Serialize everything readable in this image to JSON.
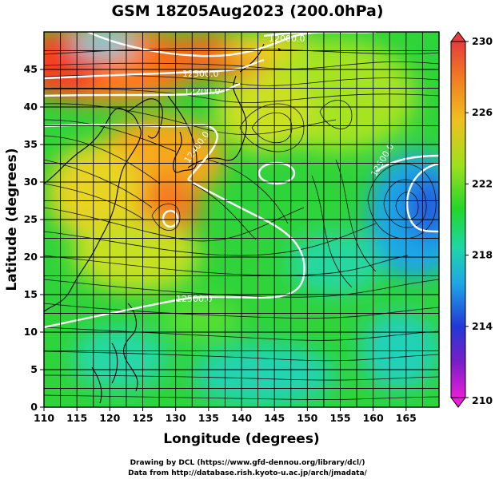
{
  "title": "GSM 18Z05Aug2023 (200.0hPa)",
  "axes": {
    "xlabel": "Longitude (degrees)",
    "ylabel": "Latitude  (degrees)",
    "xticks": [
      "110",
      "115",
      "120",
      "125",
      "130",
      "135",
      "140",
      "145",
      "150",
      "155",
      "160",
      "165"
    ],
    "yticks": [
      "0",
      "5",
      "10",
      "15",
      "20",
      "25",
      "30",
      "35",
      "40",
      "45"
    ],
    "xlim": [
      110,
      170
    ],
    "ylim": [
      0,
      50
    ]
  },
  "colorbar": {
    "ticks": [
      "230",
      "226",
      "222",
      "218",
      "214",
      "210"
    ],
    "range": [
      210,
      230
    ]
  },
  "contours": {
    "labels": [
      "12500.0",
      "12300.0",
      "12200.0",
      "12400.0",
      "12500.0",
      "12500.0",
      "12500.0",
      "12000.0"
    ]
  },
  "footer": {
    "line1": "Drawing by DCL (https://www.gfd-dennou.org/library/dcl/)",
    "line2": "Data from http://database.rish.kyoto-u.ac.jp/arch/jmadata/"
  },
  "chart_data": {
    "type": "heatmap",
    "title": "GSM 18Z05Aug2023 (200.0hPa)",
    "xlabel": "Longitude (degrees)",
    "ylabel": "Latitude  (degrees)",
    "xlim": [
      110,
      170
    ],
    "ylim": [
      0,
      50
    ],
    "colorbar_range": [
      210,
      230
    ],
    "colorbar_ticks": [
      230,
      226,
      222,
      218,
      214,
      210
    ],
    "overlays": [
      "geopotential height contours (white)",
      "wind streamlines (black)",
      "coastlines",
      "lat/lon grid"
    ],
    "contour_levels": [
      12000.0,
      12200.0,
      12300.0,
      12400.0,
      12500.0
    ]
  }
}
